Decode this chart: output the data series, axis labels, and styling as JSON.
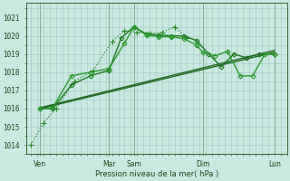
{
  "xlabel": "Pression niveau de la mer( hPa )",
  "bg_color": "#c8e8e0",
  "grid_color": "#a0c8c0",
  "ylim": [
    1013.5,
    1021.8
  ],
  "yticks": [
    1014,
    1015,
    1016,
    1017,
    1018,
    1019,
    1020,
    1021
  ],
  "xlim": [
    -0.15,
    8.2
  ],
  "xtick_positions": [
    0.3,
    2.5,
    3.3,
    5.5,
    7.8
  ],
  "xtick_labels": [
    "Ven",
    "Mar",
    "Sam",
    "Dim",
    "Lun"
  ],
  "major_vlines": [
    0.3,
    2.5,
    3.3,
    5.5,
    7.8
  ],
  "series": [
    {
      "x": [
        0.0,
        0.4,
        0.8,
        1.4,
        2.0,
        2.6,
        3.0,
        3.4,
        3.8,
        4.2,
        4.6,
        5.0
      ],
      "y": [
        1014.0,
        1015.2,
        1016.0,
        1017.5,
        1018.1,
        1019.7,
        1020.3,
        1020.2,
        1020.15,
        1020.2,
        1020.5,
        1019.9
      ],
      "color": "#2a8a2a",
      "lw": 0.9,
      "ls": "dotted",
      "marker": "+",
      "ms": 4
    },
    {
      "x": [
        0.3,
        0.7,
        1.3,
        1.9,
        2.5,
        2.9,
        3.3,
        3.7,
        4.1,
        4.5,
        4.9,
        5.3,
        5.7,
        6.1,
        6.5,
        6.9,
        7.3,
        7.8
      ],
      "y": [
        1016.0,
        1016.0,
        1017.3,
        1017.8,
        1018.1,
        1019.9,
        1020.5,
        1020.1,
        1020.05,
        1020.0,
        1020.0,
        1019.75,
        1019.0,
        1018.3,
        1019.0,
        1018.8,
        1019.0,
        1019.0
      ],
      "color": "#1e7a1e",
      "lw": 1.0,
      "ls": "solid",
      "marker": "D",
      "ms": 2.5
    },
    {
      "x": [
        0.3,
        7.8
      ],
      "y": [
        1016.0,
        1019.1
      ],
      "color": "#1a6a1a",
      "lw": 1.0,
      "ls": "solid",
      "marker": null,
      "ms": 0
    },
    {
      "x": [
        0.3,
        7.8
      ],
      "y": [
        1016.05,
        1019.2
      ],
      "color": "#226622",
      "lw": 1.0,
      "ls": "solid",
      "marker": null,
      "ms": 0
    },
    {
      "x": [
        0.3,
        0.7,
        1.3,
        1.9,
        2.5,
        3.0,
        3.3,
        3.7,
        4.1,
        4.5,
        4.9,
        5.3,
        5.5,
        5.9,
        6.3,
        6.7,
        7.1,
        7.5,
        7.8
      ],
      "y": [
        1016.0,
        1016.05,
        1017.8,
        1018.0,
        1018.2,
        1019.6,
        1020.5,
        1020.05,
        1019.95,
        1019.95,
        1019.85,
        1019.5,
        1019.1,
        1018.9,
        1019.15,
        1017.8,
        1017.8,
        1019.0,
        1019.0
      ],
      "color": "#2a9a2a",
      "lw": 1.0,
      "ls": "solid",
      "marker": "D",
      "ms": 2.5
    }
  ]
}
